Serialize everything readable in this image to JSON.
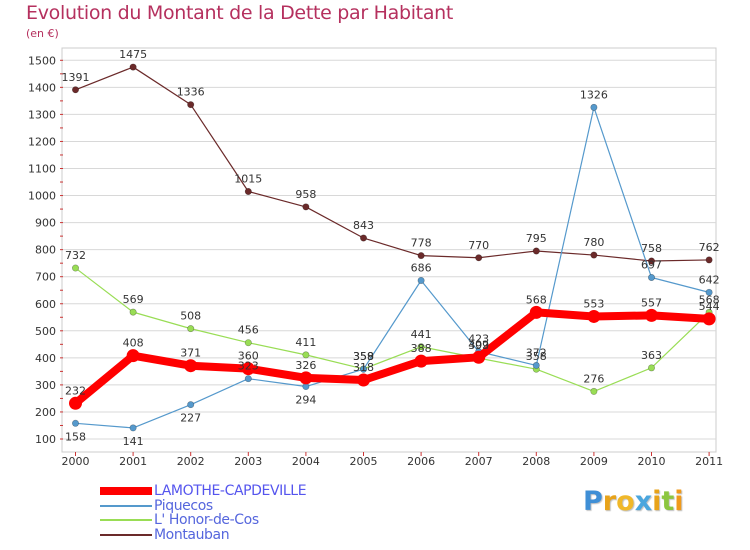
{
  "chart_data": {
    "type": "line",
    "title": "Evolution du Montant de la Dette par Habitant",
    "subtitle": "(en €)",
    "x": [
      "2000",
      "2001",
      "2002",
      "2003",
      "2004",
      "2005",
      "2006",
      "2007",
      "2008",
      "2009",
      "2010",
      "2011"
    ],
    "ylim": [
      100,
      1500
    ],
    "yticks": [
      100,
      200,
      300,
      400,
      500,
      600,
      700,
      800,
      900,
      1000,
      1100,
      1200,
      1300,
      1400,
      1500
    ],
    "grid": "horizontal",
    "legend_placement": "bottom",
    "series": [
      {
        "name": "Montauban",
        "color": "#6b2a2a",
        "values": [
          1391,
          1475,
          1336,
          1015,
          958,
          843,
          778,
          770,
          795,
          780,
          758,
          762
        ]
      },
      {
        "name": "L' Honor-de-Cos",
        "color": "#99dd55",
        "values": [
          732,
          569,
          508,
          456,
          411,
          359,
          441,
          399,
          358,
          276,
          363,
          568
        ]
      },
      {
        "name": "Piquecos",
        "color": "#5599cc",
        "values": [
          158,
          141,
          227,
          323,
          294,
          358,
          686,
          423,
          372,
          1326,
          697,
          642
        ]
      },
      {
        "name": "LAMOTHE-CAPDEVILLE",
        "color": "#ff0000",
        "values": [
          232,
          408,
          371,
          360,
          326,
          318,
          388,
          402,
          568,
          553,
          557,
          544
        ]
      }
    ]
  },
  "logo": {
    "letters": [
      {
        "ch": "P",
        "color": "#3f8fd6"
      },
      {
        "ch": "r",
        "color": "#e8a31a"
      },
      {
        "ch": "o",
        "color": "#f0b82a"
      },
      {
        "ch": "x",
        "color": "#4aa6de"
      },
      {
        "ch": "i",
        "color": "#e8a31a"
      },
      {
        "ch": "t",
        "color": "#8cc63f"
      },
      {
        "ch": "i",
        "color": "#f09a1a"
      }
    ]
  }
}
